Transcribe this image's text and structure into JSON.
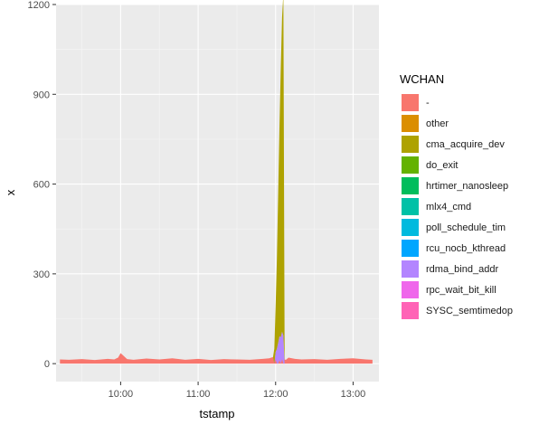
{
  "chart_data": {
    "type": "area",
    "stacked": true,
    "xlabel": "tstamp",
    "ylabel": "x",
    "x_ticks": [
      "10:00",
      "11:00",
      "12:00",
      "13:00"
    ],
    "x_tick_values": [
      600,
      660,
      720,
      780
    ],
    "xlim": [
      550,
      800
    ],
    "y_ticks": [
      "0",
      "300",
      "600",
      "900",
      "1200"
    ],
    "y_tick_values": [
      0,
      300,
      600,
      900,
      1200
    ],
    "ylim": [
      -60,
      1200
    ],
    "grid": true,
    "legend_position": "right",
    "legend_title": "WCHAN",
    "legend": [
      {
        "label": "-",
        "color": "#F8766D"
      },
      {
        "label": "other",
        "color": "#DB8E00"
      },
      {
        "label": "cma_acquire_dev",
        "color": "#AEA200"
      },
      {
        "label": "do_exit",
        "color": "#64B200"
      },
      {
        "label": "hrtimer_nanosleep",
        "color": "#00BD5C"
      },
      {
        "label": "mlx4_cmd",
        "color": "#00C1A7"
      },
      {
        "label": "poll_schedule_tim",
        "color": "#00BADE"
      },
      {
        "label": "rcu_nocb_kthread",
        "color": "#00A6FF"
      },
      {
        "label": "rdma_bind_addr",
        "color": "#B385FF"
      },
      {
        "label": "rpc_wait_bit_kill",
        "color": "#EF67EB"
      },
      {
        "label": "SYSC_semtimedop",
        "color": "#FF63B6"
      }
    ],
    "series": [
      {
        "name": "-",
        "x": [
          553,
          560,
          570,
          580,
          590,
          595,
          598,
          600,
          605,
          610,
          620,
          630,
          640,
          650,
          660,
          670,
          680,
          690,
          700,
          710,
          715,
          718,
          720,
          723,
          725,
          728,
          730,
          735,
          740,
          750,
          760,
          770,
          780,
          790,
          795
        ],
        "y": [
          14,
          13,
          15,
          12,
          16,
          14,
          20,
          35,
          15,
          13,
          17,
          14,
          18,
          13,
          16,
          12,
          15,
          14,
          13,
          16,
          18,
          22,
          14,
          12,
          15,
          13,
          20,
          16,
          14,
          15,
          13,
          16,
          18,
          14,
          13
        ]
      },
      {
        "name": "rdma_bind_addr",
        "x": [
          719,
          720,
          721,
          722,
          723,
          724,
          725,
          726,
          727
        ],
        "y": [
          0,
          25,
          50,
          70,
          80,
          88,
          92,
          94,
          0
        ]
      },
      {
        "name": "cma_acquire_dev",
        "x": [
          718,
          719,
          720,
          721,
          722,
          723,
          724,
          725,
          726,
          727
        ],
        "y": [
          0,
          50,
          150,
          300,
          500,
          700,
          900,
          1050,
          1140,
          0
        ]
      }
    ]
  }
}
